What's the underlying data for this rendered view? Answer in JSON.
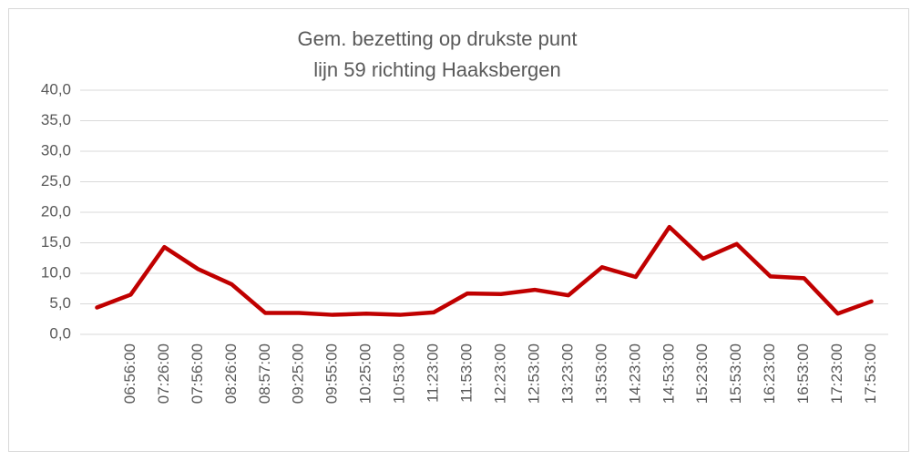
{
  "chart_data": {
    "type": "line",
    "title": [
      "Gem. bezetting op drukste punt",
      "lijn 59 richting Haaksbergen"
    ],
    "categories": [
      null,
      "06:56:00",
      "07:26:00",
      "07:56:00",
      "08:26:00",
      "08:57:00",
      "09:25:00",
      "09:55:00",
      "10:25:00",
      "10:53:00",
      "11:23:00",
      "11:53:00",
      "12:23:00",
      "12:53:00",
      "13:23:00",
      "13:53:00",
      "14:23:00",
      "14:53:00",
      "15:23:00",
      "15:53:00",
      "16:23:00",
      "16:53:00",
      "17:23:00",
      "17:53:00"
    ],
    "values": [
      4.4,
      6.5,
      14.3,
      10.7,
      8.2,
      3.5,
      3.5,
      3.2,
      3.4,
      3.2,
      3.6,
      6.7,
      6.6,
      7.3,
      6.4,
      11.0,
      9.4,
      17.6,
      12.4,
      14.8,
      9.5,
      9.2,
      3.4,
      5.4
    ],
    "color": "#c00000",
    "ylim": [
      0,
      40
    ],
    "yticks": [
      {
        "value": 0,
        "label": "0,0"
      },
      {
        "value": 5,
        "label": "5,0"
      },
      {
        "value": 10,
        "label": "10,0"
      },
      {
        "value": 15,
        "label": "15,0"
      },
      {
        "value": 20,
        "label": "20,0"
      },
      {
        "value": 25,
        "label": "25,0"
      },
      {
        "value": 30,
        "label": "30,0"
      },
      {
        "value": 35,
        "label": "35,0"
      },
      {
        "value": 40,
        "label": "40,0"
      }
    ],
    "grid": true
  }
}
